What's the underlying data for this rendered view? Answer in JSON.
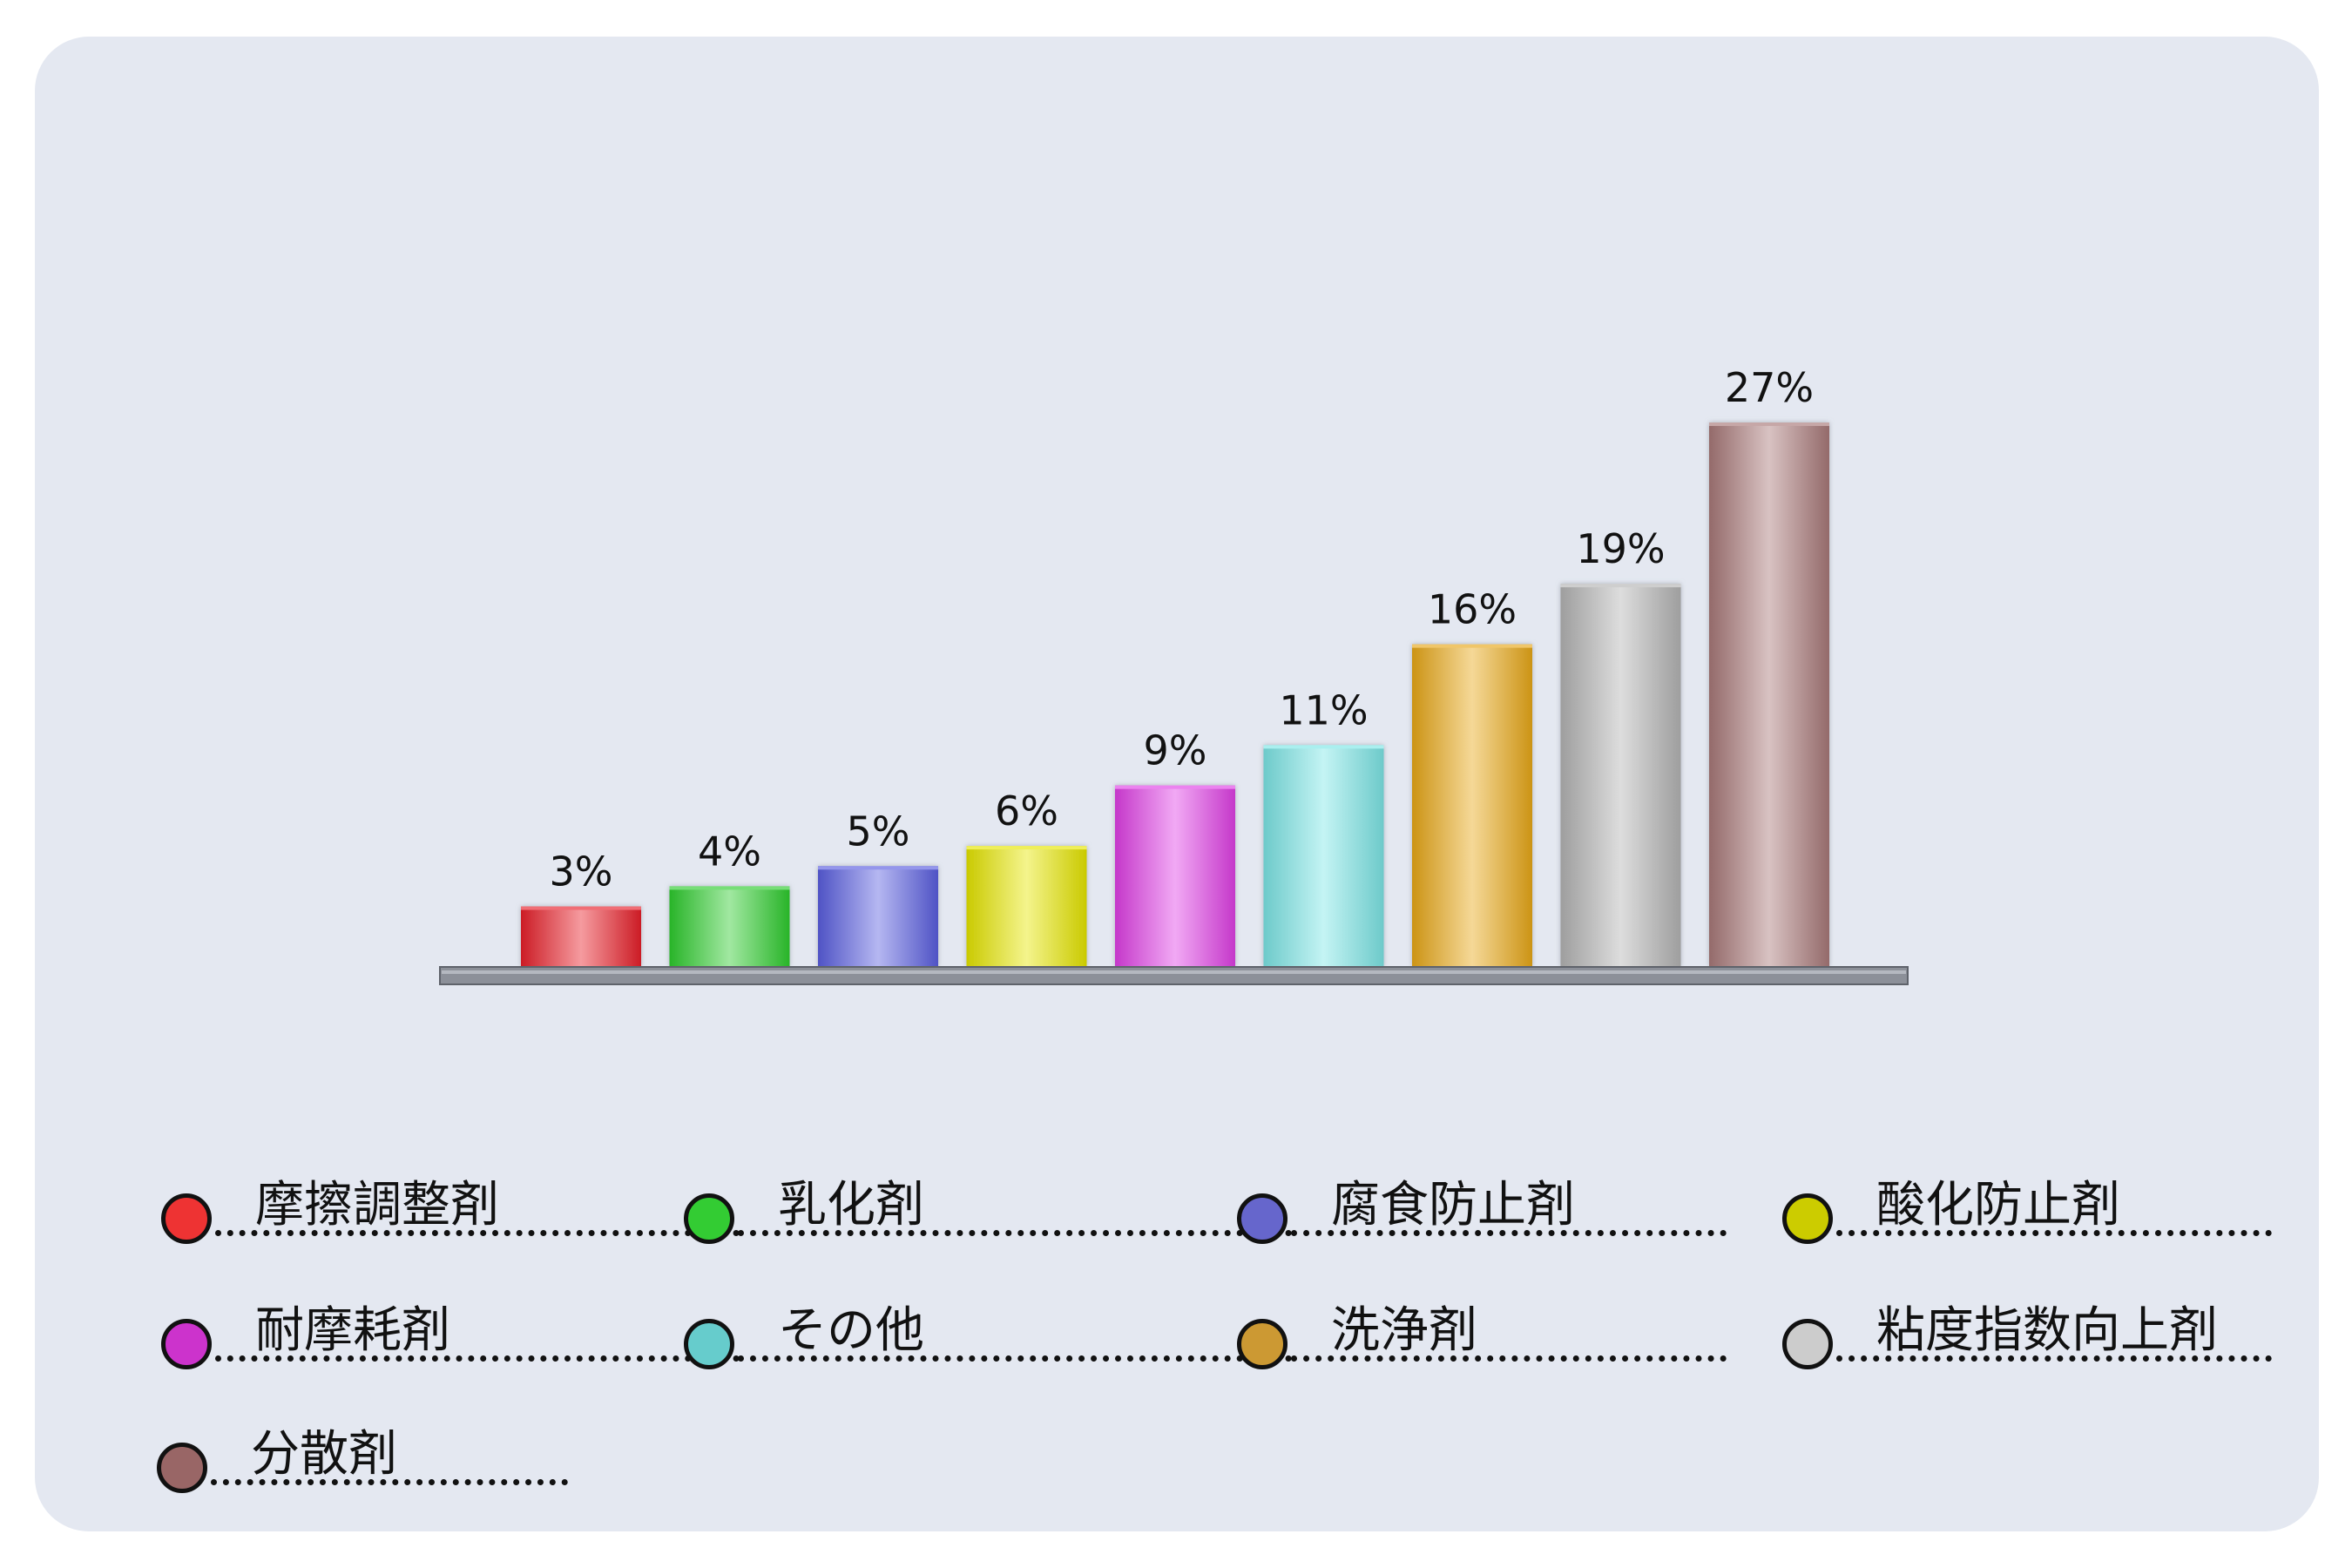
{
  "chart_data": {
    "type": "bar",
    "title": "",
    "xlabel": "",
    "ylabel": "",
    "ylim": [
      0,
      27
    ],
    "categories": [
      "摩擦調整剤",
      "乳化剤",
      "腐食防止剤",
      "酸化防止剤",
      "耐摩耗剤",
      "その他",
      "洗浄剤",
      "粘度指数向上剤",
      "分散剤"
    ],
    "values": [
      3,
      4,
      5,
      6,
      9,
      11,
      16,
      19,
      27
    ],
    "value_labels": [
      "3%",
      "4%",
      "5%",
      "6%",
      "9%",
      "11%",
      "16%",
      "19%",
      "27%"
    ],
    "colors": [
      "#e8202a",
      "#2ecc2e",
      "#5a5ee0",
      "#e6e600",
      "#e040e6",
      "#7ce6e6",
      "#e8a818",
      "#b4b4b4",
      "#a87878"
    ],
    "legend": [
      {
        "label": "摩擦調整剤",
        "color": "#ee3333"
      },
      {
        "label": "乳化剤",
        "color": "#33cc33"
      },
      {
        "label": "腐食防止剤",
        "color": "#6666cc"
      },
      {
        "label": "酸化防止剤",
        "color": "#cccc00"
      },
      {
        "label": "耐摩耗剤",
        "color": "#cc33cc"
      },
      {
        "label": "その他",
        "color": "#66cccc"
      },
      {
        "label": "洗浄剤",
        "color": "#cc9933"
      },
      {
        "label": "粘度指数向上剤",
        "color": "#cccccc"
      },
      {
        "label": "分散剤",
        "color": "#996666"
      }
    ],
    "legend_placement": "bottom",
    "grid": false
  }
}
